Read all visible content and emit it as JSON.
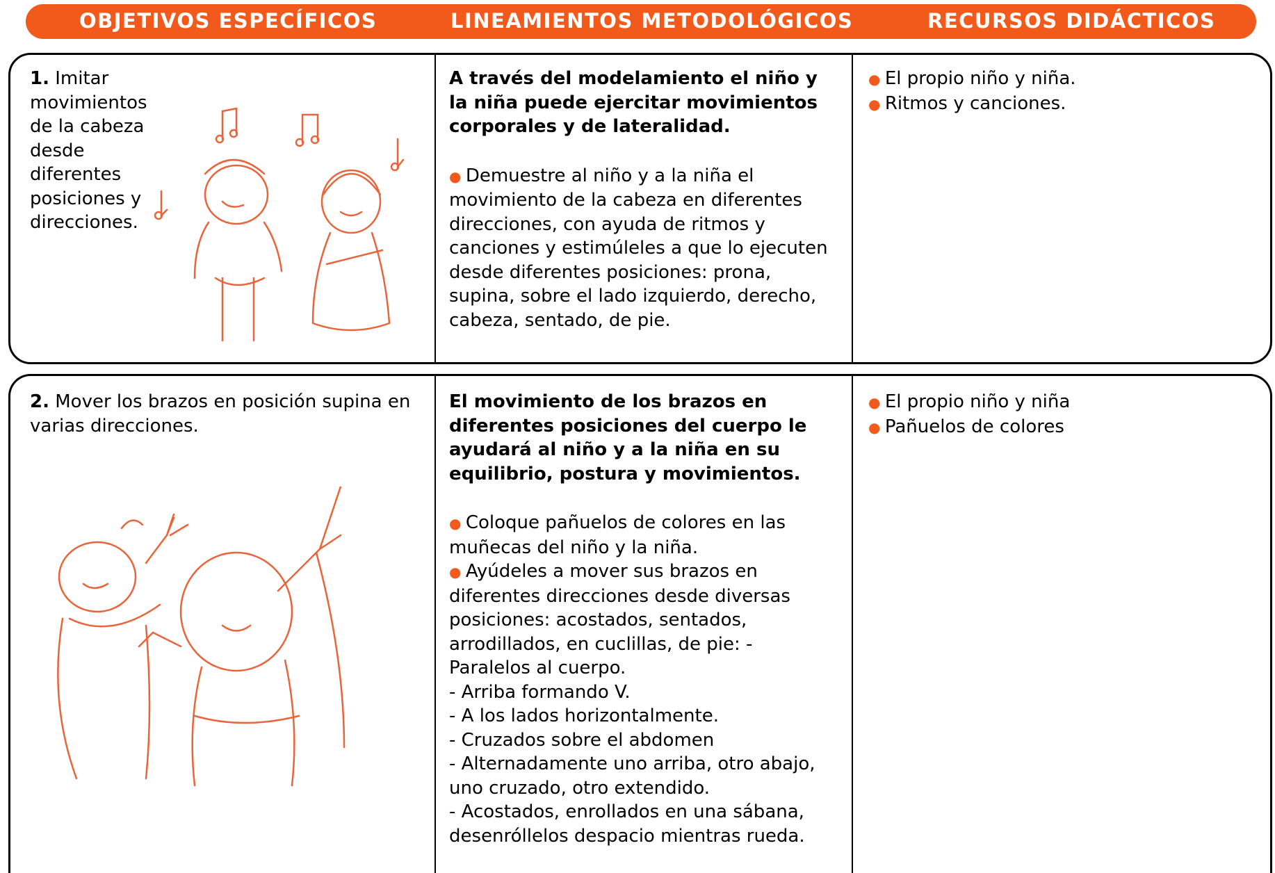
{
  "header": [
    "OBJETIVOS ESPECÍFICOS",
    "LINEAMIENTOS METODOLÓGICOS",
    "RECURSOS DIDÁCTICOS"
  ],
  "rows": [
    {
      "number": "1.",
      "objective": "Imitar movimientos de la cabeza desde diferentes posiciones y direcciones.",
      "method_title": "A través del modelamiento el niño y la niña puede ejercitar movimientos corporales y de lateralidad.",
      "bullets": [
        "Demuestre al niño y a la niña el movimiento de la cabeza en diferentes direcciones, con ayuda de ritmos y canciones y estimúleles a que lo ejecuten desde diferentes posiciones: prona, supina, sobre el lado izquierdo, derecho, cabeza, sentado, de pie."
      ],
      "dash_lines": [],
      "resources": [
        "El propio niño y niña.",
        "Ritmos y canciones."
      ]
    },
    {
      "number": "2.",
      "objective": "Mover los brazos en posición supina en varias direcciones.",
      "method_title": "El movimiento de los brazos en diferentes posiciones del cuerpo le ayudará al niño y a la niña en su equilibrio, postura y movimientos.",
      "bullets": [
        "Coloque  pañuelos de colores en las muñecas del niño y la niña.",
        "Ayúdeles a mover sus brazos en diferentes direcciones desde diversas posiciones: acostados, sentados, arrodillados, en cuclillas, de pie: - Paralelos al cuerpo."
      ],
      "dash_lines": [
        "- Arriba formando V.",
        "- A los lados horizontalmente.",
        "- Cruzados sobre el abdomen",
        "- Alternadamente uno arriba, otro abajo, uno cruzado, otro extendido.",
        "- Acostados, enrollados en una sábana, desenróllelos despacio mientras rueda."
      ],
      "resources": [
        "El propio niño y niña",
        "Pañuelos de colores"
      ]
    }
  ]
}
